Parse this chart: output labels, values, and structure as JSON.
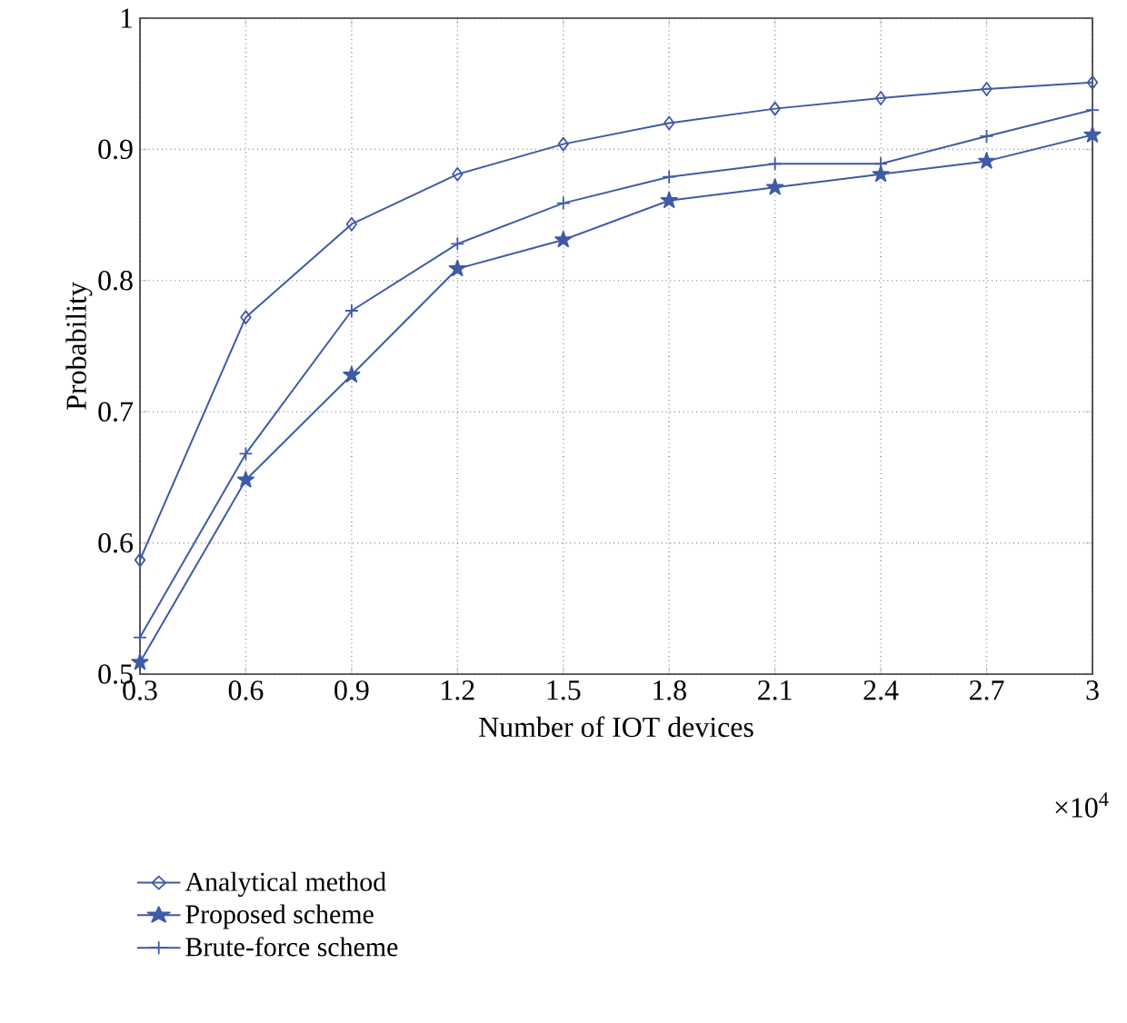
{
  "chart_data": {
    "type": "line",
    "xlabel": "Number of IOT devices",
    "ylabel": "Probability",
    "annotations": [
      "×10$^{4}$"
    ],
    "x": [
      0.3,
      0.6,
      0.9,
      1.2,
      1.5,
      1.8,
      2.1,
      2.4,
      2.7,
      3
    ],
    "series": [
      {
        "name": "Analytical method",
        "color": "#3f5aa8",
        "marker": "diamond",
        "values": [
          0.587,
          0.772,
          0.843,
          0.881,
          0.904,
          0.92,
          0.931,
          0.939,
          0.946,
          0.951
        ]
      },
      {
        "name": "Proposed scheme",
        "color": "#3f5aa8",
        "marker": "star",
        "values": [
          0.509,
          0.648,
          0.728,
          0.809,
          0.831,
          0.861,
          0.871,
          0.881,
          0.891,
          0.911
        ]
      },
      {
        "name": "Brute-force scheme",
        "color": "#3f5aa8",
        "marker": "cross",
        "values": [
          0.528,
          0.668,
          0.777,
          0.828,
          0.859,
          0.879,
          0.889,
          0.889,
          0.91,
          0.93
        ]
      }
    ],
    "xlim": [
      0.3,
      3
    ],
    "ylim": [
      0.5,
      1
    ],
    "xticks": [
      0.3,
      0.6,
      0.9,
      1.2,
      1.5,
      1.8,
      2.1,
      2.4,
      2.7,
      3
    ],
    "yticks": [
      0.5,
      0.6,
      0.7,
      0.8,
      0.9,
      1
    ],
    "grid": true,
    "legend": "bottom",
    "line_style": "solid"
  }
}
